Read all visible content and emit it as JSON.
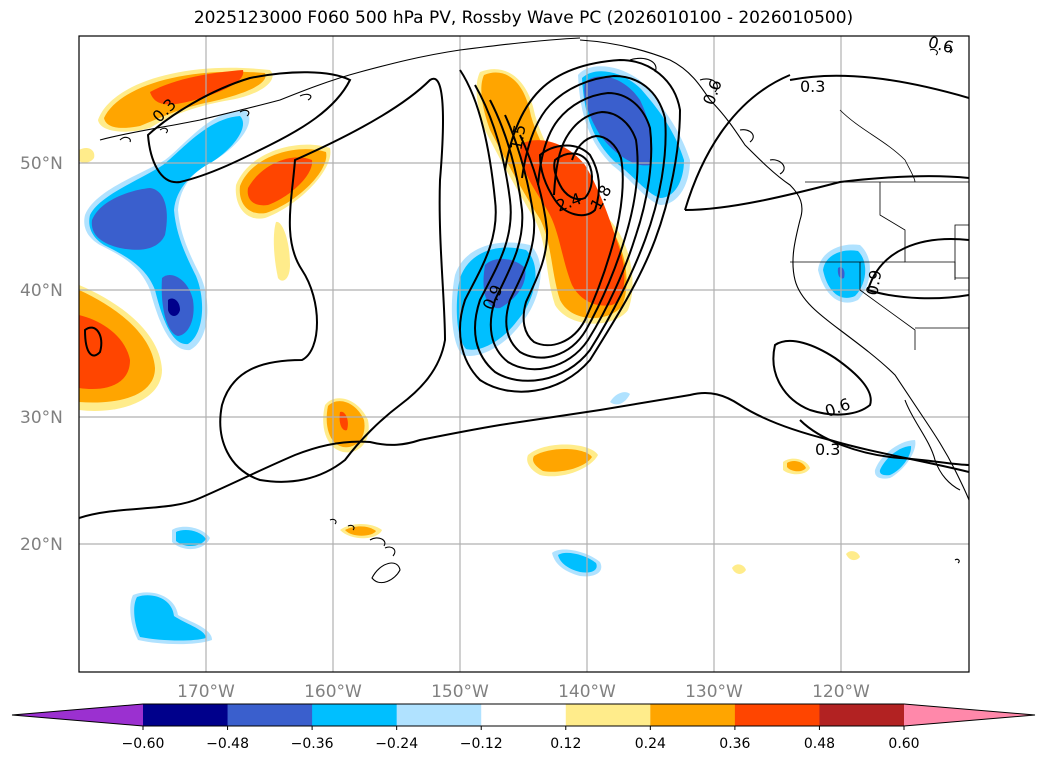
{
  "title": "2025123000 F060 500 hPa PV, Rossby Wave PC (2026010100 - 2026010500)",
  "map": {
    "lon_range": [
      -180,
      -110
    ],
    "lat_range": [
      10,
      60
    ],
    "lon_ticks": [
      {
        "lon": -170,
        "label": "170°W"
      },
      {
        "lon": -160,
        "label": "160°W"
      },
      {
        "lon": -150,
        "label": "150°W"
      },
      {
        "lon": -140,
        "label": "140°W"
      },
      {
        "lon": -130,
        "label": "130°W"
      },
      {
        "lon": -120,
        "label": "120°W"
      }
    ],
    "lat_ticks": [
      {
        "lat": 20,
        "label": "20°N"
      },
      {
        "lat": 30,
        "label": "30°N"
      },
      {
        "lat": 40,
        "label": "40°N"
      },
      {
        "lat": 50,
        "label": "50°N"
      }
    ],
    "grid": true,
    "contour_labels": [
      "0.3",
      "0.3",
      "0.3",
      "0.6",
      "0.6",
      "0.6",
      "0.9",
      "0.9",
      "1.5",
      "2.4",
      "1.8"
    ]
  },
  "colorbar": {
    "levels": [
      "−0.60",
      "−0.48",
      "−0.36",
      "−0.24",
      "−0.12",
      "0.12",
      "0.24",
      "0.36",
      "0.48",
      "0.60"
    ],
    "colors": [
      "#9b30d0",
      "#00008b",
      "#3a5fcd",
      "#00bfff",
      "#b0e2ff",
      "#ffffff",
      "#ffec8b",
      "#ffa500",
      "#ff4500",
      "#b22222",
      "#ff88aa"
    ],
    "extend": "both"
  }
}
